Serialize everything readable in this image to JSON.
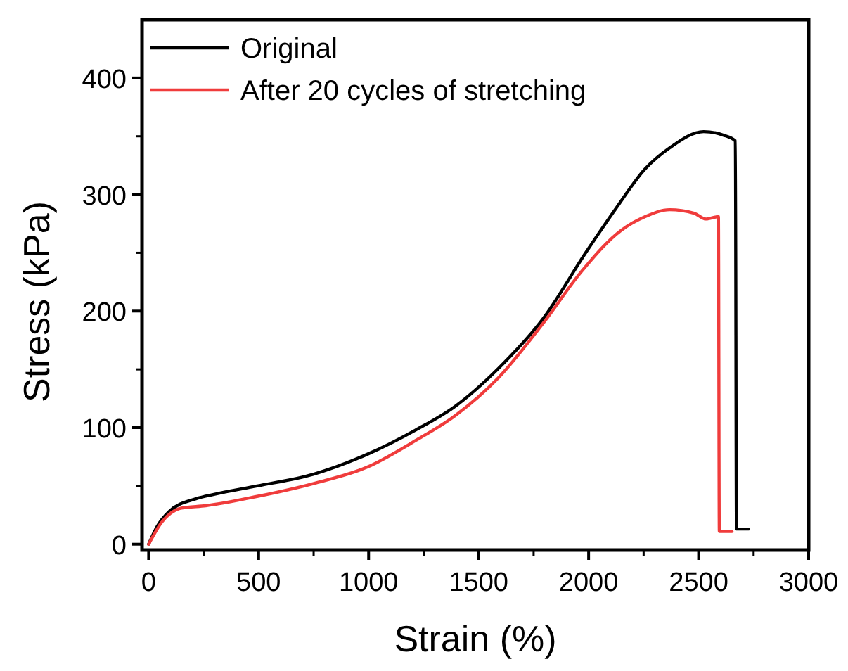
{
  "chart_data": {
    "type": "line",
    "xlabel": "Strain (%)",
    "ylabel": "Stress (kPa)",
    "xlim": [
      -30,
      3000
    ],
    "ylim": [
      -5,
      450
    ],
    "xticks": [
      0,
      500,
      1000,
      1500,
      2000,
      2500,
      3000
    ],
    "yticks": [
      0,
      100,
      200,
      300,
      400
    ],
    "legend": "top left",
    "grid": false,
    "line_style": "solid",
    "series": [
      {
        "name": "Original",
        "color": "#000000",
        "x": [
          0,
          38,
          93,
          215,
          304,
          493,
          748,
          992,
          1214,
          1391,
          1591,
          1791,
          1990,
          2124,
          2257,
          2368,
          2523,
          2612,
          2667,
          2672,
          2727
        ],
        "values": [
          0,
          15,
          28,
          39,
          43,
          50,
          60,
          77,
          98,
          118,
          151,
          193,
          251,
          288,
          322,
          340,
          354,
          351,
          346,
          13,
          13
        ]
      },
      {
        "name": "After 20 cycles of stretching",
        "color": "#f03c3c",
        "x": [
          0,
          60,
          149,
          260,
          493,
          748,
          992,
          1214,
          1391,
          1591,
          1791,
          1968,
          2146,
          2257,
          2368,
          2479,
          2534,
          2590,
          2594,
          2652
        ],
        "values": [
          0,
          19,
          31,
          33,
          41,
          52,
          66,
          89,
          110,
          143,
          189,
          234,
          269,
          281,
          287,
          284,
          279,
          281,
          11,
          11
        ]
      }
    ]
  }
}
